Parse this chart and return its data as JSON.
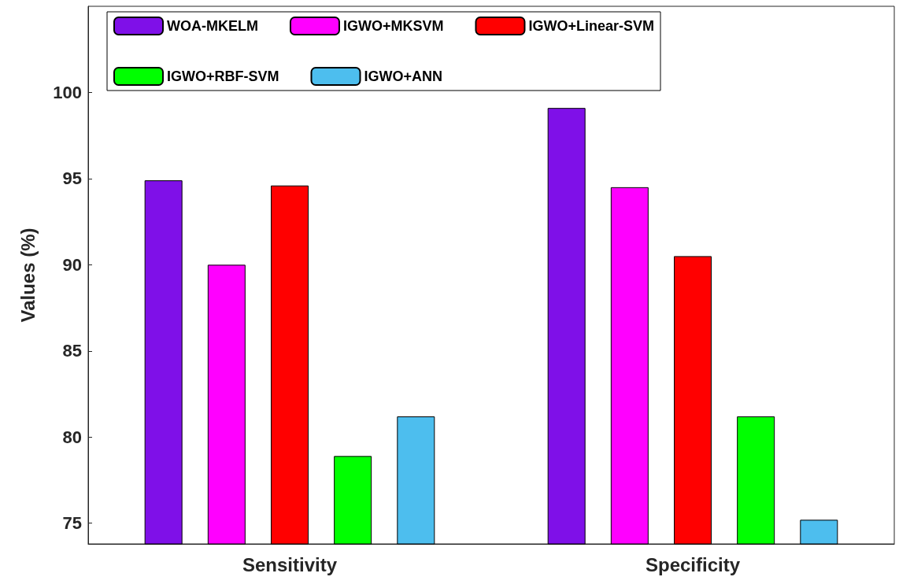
{
  "chart_data": {
    "type": "bar",
    "ylabel": "Values (%)",
    "categories": [
      "Sensitivity",
      "Specificity"
    ],
    "series": [
      {
        "name": "WOA-MKELM",
        "color": "#7f10e8",
        "values": [
          94.9,
          99.1
        ]
      },
      {
        "name": "IGWO+MKSVM",
        "color": "#ff00ff",
        "values": [
          90.0,
          94.5
        ]
      },
      {
        "name": "IGWO+Linear-SVM",
        "color": "#ff0000",
        "values": [
          94.6,
          90.5
        ]
      },
      {
        "name": "IGWO+RBF-SVM",
        "color": "#00ff00",
        "values": [
          78.9,
          81.2
        ]
      },
      {
        "name": "IGWO+ANN",
        "color": "#4dbeee",
        "values": [
          81.2,
          75.2
        ]
      }
    ],
    "ylim": [
      73.8,
      105
    ],
    "yticks": [
      75,
      80,
      85,
      90,
      95,
      100
    ],
    "grid": false,
    "legend": "top"
  }
}
